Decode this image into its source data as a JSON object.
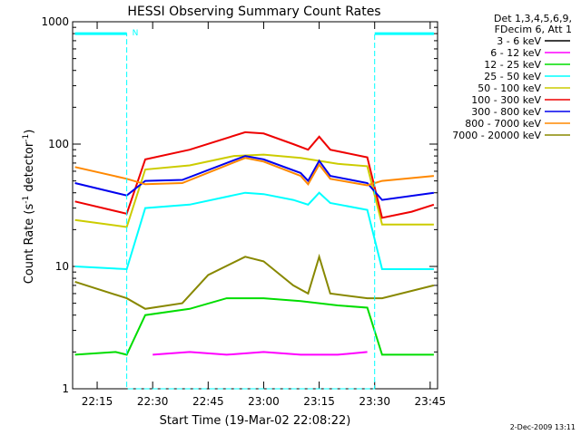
{
  "chart_data": {
    "type": "line",
    "title": "HESSI Observing Summary Count Rates",
    "xlabel": "Start Time (19-Mar-02 22:08:22)",
    "ylabel_main": "Count Rate (s",
    "ylabel_sup1": "-1",
    "ylabel_mid": " detector",
    "ylabel_sup2": "-1",
    "ylabel_end": ")",
    "yscale": "log",
    "ylim": [
      1,
      1000
    ],
    "xlim": [
      "22:08:22",
      "23:47:00"
    ],
    "x_ticks": [
      "22:15",
      "22:30",
      "22:45",
      "23:00",
      "23:15",
      "23:30",
      "23:45"
    ],
    "y_ticks": [
      "1",
      "10",
      "100",
      "1000"
    ],
    "legend_header": [
      "Det 1,3,4,5,6,9,",
      "FDecim 6, Att 1"
    ],
    "footer": "2-Dec-2009 13:11",
    "night_flag": "N",
    "series": [
      {
        "name": "3 - 6 keV",
        "color": "#000000",
        "points": []
      },
      {
        "name": "6 - 12 keV",
        "color": "#ff00ff",
        "points": [
          [
            "22:30",
            1.9
          ],
          [
            "22:40",
            2.0
          ],
          [
            "22:50",
            1.9
          ],
          [
            "23:00",
            2.0
          ],
          [
            "23:10",
            1.9
          ],
          [
            "23:20",
            1.9
          ],
          [
            "23:28",
            2.0
          ]
        ]
      },
      {
        "name": "12 - 25 keV",
        "color": "#00dd00",
        "points": [
          [
            "22:09",
            1.9
          ],
          [
            "22:20",
            2.0
          ],
          [
            "22:23",
            1.9
          ],
          [
            "22:28",
            4.0
          ],
          [
            "22:40",
            4.5
          ],
          [
            "22:50",
            5.5
          ],
          [
            "23:00",
            5.5
          ],
          [
            "23:10",
            5.2
          ],
          [
            "23:20",
            4.8
          ],
          [
            "23:28",
            4.6
          ],
          [
            "23:32",
            1.9
          ],
          [
            "23:46",
            1.9
          ]
        ]
      },
      {
        "name": "25 - 50 keV",
        "color": "#00ffff",
        "points": [
          [
            "22:09",
            10
          ],
          [
            "22:23",
            9.5
          ],
          [
            "22:28",
            30
          ],
          [
            "22:40",
            32
          ],
          [
            "22:55",
            40
          ],
          [
            "23:00",
            39
          ],
          [
            "23:08",
            35
          ],
          [
            "23:12",
            32
          ],
          [
            "23:15",
            40
          ],
          [
            "23:18",
            33
          ],
          [
            "23:28",
            29
          ],
          [
            "23:32",
            9.5
          ],
          [
            "23:46",
            9.5
          ]
        ]
      },
      {
        "name": "50 - 100 keV",
        "color": "#cccc00",
        "points": [
          [
            "22:09",
            24
          ],
          [
            "22:23",
            21
          ],
          [
            "22:28",
            62
          ],
          [
            "22:40",
            67
          ],
          [
            "22:52",
            80
          ],
          [
            "23:00",
            82
          ],
          [
            "23:10",
            77
          ],
          [
            "23:20",
            69
          ],
          [
            "23:28",
            66
          ],
          [
            "23:32",
            22
          ],
          [
            "23:46",
            22
          ]
        ]
      },
      {
        "name": "100 - 300 keV",
        "color": "#ee0000",
        "points": [
          [
            "22:09",
            34
          ],
          [
            "22:23",
            27
          ],
          [
            "22:28",
            75
          ],
          [
            "22:40",
            90
          ],
          [
            "22:55",
            125
          ],
          [
            "23:00",
            122
          ],
          [
            "23:08",
            100
          ],
          [
            "23:12",
            90
          ],
          [
            "23:15",
            115
          ],
          [
            "23:18",
            90
          ],
          [
            "23:28",
            78
          ],
          [
            "23:32",
            25
          ],
          [
            "23:40",
            28
          ],
          [
            "23:46",
            32
          ]
        ]
      },
      {
        "name": "300 - 800 keV",
        "color": "#0000ee",
        "points": [
          [
            "22:09",
            48
          ],
          [
            "22:23",
            38
          ],
          [
            "22:28",
            50
          ],
          [
            "22:38",
            51
          ],
          [
            "22:55",
            80
          ],
          [
            "23:00",
            75
          ],
          [
            "23:10",
            58
          ],
          [
            "23:12",
            50
          ],
          [
            "23:15",
            73
          ],
          [
            "23:18",
            55
          ],
          [
            "23:28",
            48
          ],
          [
            "23:32",
            35
          ],
          [
            "23:46",
            40
          ]
        ]
      },
      {
        "name": "800 - 7000 keV",
        "color": "#ff8800",
        "points": [
          [
            "22:09",
            65
          ],
          [
            "22:23",
            52
          ],
          [
            "22:28",
            47
          ],
          [
            "22:38",
            48
          ],
          [
            "22:55",
            77
          ],
          [
            "23:00",
            72
          ],
          [
            "23:10",
            55
          ],
          [
            "23:12",
            47
          ],
          [
            "23:15",
            68
          ],
          [
            "23:18",
            52
          ],
          [
            "23:28",
            46
          ],
          [
            "23:32",
            50
          ],
          [
            "23:46",
            55
          ]
        ]
      },
      {
        "name": "7000 - 20000 keV",
        "color": "#888800",
        "points": [
          [
            "22:09",
            7.5
          ],
          [
            "22:23",
            5.5
          ],
          [
            "22:28",
            4.5
          ],
          [
            "22:38",
            5.0
          ],
          [
            "22:45",
            8.5
          ],
          [
            "22:55",
            12
          ],
          [
            "23:00",
            11
          ],
          [
            "23:08",
            7.0
          ],
          [
            "23:12",
            6.0
          ],
          [
            "23:15",
            12
          ],
          [
            "23:18",
            6.0
          ],
          [
            "23:28",
            5.5
          ],
          [
            "23:32",
            5.5
          ],
          [
            "23:46",
            7.0
          ]
        ]
      }
    ],
    "attenuator_trace": {
      "color": "#00ffff",
      "points": [
        [
          "22:09",
          800
        ],
        [
          "22:23",
          800
        ],
        [
          "22:23",
          1
        ],
        [
          "23:30",
          1
        ],
        [
          "23:30",
          800
        ],
        [
          "23:46",
          800
        ]
      ]
    }
  }
}
